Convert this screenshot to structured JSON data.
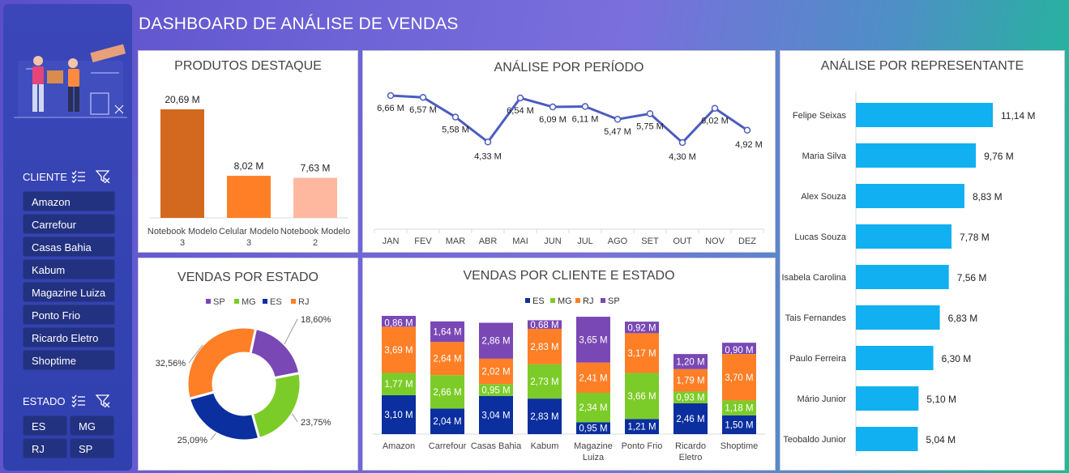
{
  "title": "DASHBOARD DE ANÁLISE DE VENDAS",
  "sidebar": {
    "cliente_label": "CLIENTE",
    "clientes": [
      "Amazon",
      "Carrefour",
      "Casas Bahia",
      "Kabum",
      "Magazine Luiza",
      "Ponto Frio",
      "Ricardo Eletro",
      "Shoptime"
    ],
    "estado_label": "ESTADO",
    "estados": [
      "ES",
      "MG",
      "RJ",
      "SP"
    ],
    "icons": [
      "multi-select-icon",
      "clear-filter-icon"
    ]
  },
  "colors": {
    "orange_dark": "#d2691e",
    "orange": "#ff7f27",
    "peach": "#ffb8a0",
    "line": "#4c5cbf",
    "bar_blue": "#11b0f0",
    "ES": "#0b2f9f",
    "MG": "#7ccc29",
    "RJ": "#ff7f27",
    "SP": "#7a48b5"
  },
  "chart_data": [
    {
      "id": "produtos",
      "type": "bar",
      "title": "PRODUTOS DESTAQUE",
      "categories": [
        "Notebook Modelo 3",
        "Celular Modelo 3",
        "Notebook Modelo 2"
      ],
      "values": [
        20.69,
        8.02,
        7.63
      ],
      "labels": [
        "20,69 M",
        "8,02 M",
        "7,63 M"
      ]
    },
    {
      "id": "periodo",
      "type": "line",
      "title": "ANÁLISE POR PERÍODO",
      "categories": [
        "JAN",
        "FEV",
        "MAR",
        "ABR",
        "MAI",
        "JUN",
        "JUL",
        "AGO",
        "SET",
        "OUT",
        "NOV",
        "DEZ"
      ],
      "values": [
        6.66,
        6.57,
        5.58,
        4.33,
        6.54,
        6.09,
        6.11,
        5.47,
        5.75,
        4.3,
        6.02,
        4.92
      ],
      "labels": [
        "6,66 M",
        "6,57 M",
        "5,58 M",
        "4,33 M",
        "6,54 M",
        "6,09 M",
        "6,11 M",
        "5,47 M",
        "5,75 M",
        "4,30 M",
        "6,02 M",
        "4,92 M"
      ]
    },
    {
      "id": "representante",
      "type": "bar",
      "title": "ANÁLISE POR REPRESENTANTE",
      "categories": [
        "Felipe Seixas",
        "Maria Silva",
        "Alex Souza",
        "Lucas Souza",
        "Isabela Carolina",
        "Tais Fernandes",
        "Paulo Ferreira",
        "Mário Junior",
        "Teobaldo Junior"
      ],
      "values": [
        11.14,
        9.76,
        8.83,
        7.78,
        7.56,
        6.83,
        6.3,
        5.1,
        5.04
      ],
      "labels": [
        "11,14 M",
        "9,76 M",
        "8,83 M",
        "7,78 M",
        "7,56 M",
        "6,83 M",
        "6,30 M",
        "5,10 M",
        "5,04 M"
      ]
    },
    {
      "id": "estado",
      "type": "pie",
      "title": "VENDAS POR ESTADO",
      "legend": [
        "SP",
        "MG",
        "ES",
        "RJ"
      ],
      "values": [
        18.6,
        23.75,
        25.09,
        32.56
      ],
      "labels": [
        "18,60%",
        "23,75%",
        "25,09%",
        "32,56%"
      ]
    },
    {
      "id": "cliente_estado",
      "type": "bar",
      "title": "VENDAS POR CLIENTE E ESTADO",
      "categories": [
        "Amazon",
        "Carrefour",
        "Casas Bahia",
        "Kabum",
        "Magazine Luiza",
        "Ponto Frio",
        "Ricardo Eletro",
        "Shoptime"
      ],
      "series": [
        {
          "name": "ES",
          "values": [
            3.1,
            2.04,
            3.04,
            2.83,
            0.95,
            1.21,
            2.46,
            1.5
          ],
          "labels": [
            "3,10 M",
            "2,04 M",
            "3,04 M",
            "2,83 M",
            "0,95 M",
            "1,21 M",
            "2,46 M",
            "1,50 M"
          ]
        },
        {
          "name": "MG",
          "values": [
            1.77,
            2.66,
            0.95,
            2.73,
            2.34,
            3.66,
            0.93,
            1.18
          ],
          "labels": [
            "1,77 M",
            "2,66 M",
            "0,95 M",
            "2,73 M",
            "2,34 M",
            "3,66 M",
            "0,93 M",
            "1,18 M"
          ]
        },
        {
          "name": "RJ",
          "values": [
            3.69,
            2.64,
            2.02,
            2.83,
            2.41,
            3.17,
            1.79,
            3.7
          ],
          "labels": [
            "3,69 M",
            "2,64 M",
            "2,02 M",
            "2,83 M",
            "2,41 M",
            "3,17 M",
            "1,79 M",
            "3,70 M"
          ]
        },
        {
          "name": "SP",
          "values": [
            0.86,
            1.64,
            2.86,
            0.68,
            3.65,
            0.92,
            1.2,
            0.9
          ],
          "labels": [
            "0,86 M",
            "1,64 M",
            "2,86 M",
            "0,68 M",
            "3,65 M",
            "0,92 M",
            "1,20 M",
            "0,90 M"
          ]
        }
      ]
    }
  ]
}
